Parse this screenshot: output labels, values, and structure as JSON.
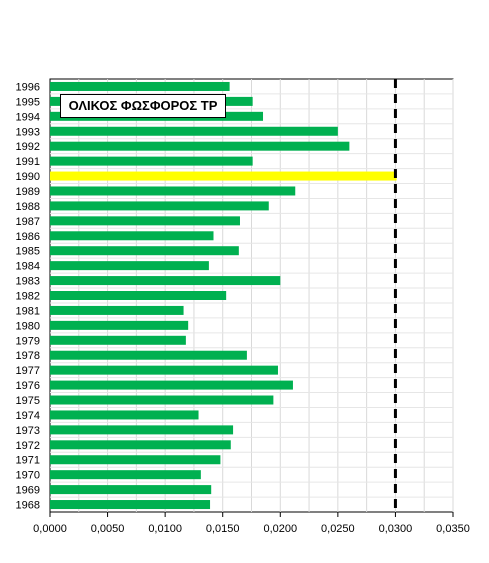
{
  "chart_data": {
    "type": "bar",
    "orientation": "horizontal",
    "title": "ΟΛΙΚΟΣ ΦΩΣΦΟΡΟΣ TP",
    "xlim": [
      0,
      0.035
    ],
    "x_ticks": [
      "0,0000",
      "0,0050",
      "0,0100",
      "0,0150",
      "0,0200",
      "0,0250",
      "0,0300",
      "0,0350"
    ],
    "x_tick_values": [
      0,
      0.005,
      0.01,
      0.015,
      0.02,
      0.025,
      0.03,
      0.035
    ],
    "grid": true,
    "categories": [
      "1968",
      "1969",
      "1970",
      "1971",
      "1972",
      "1973",
      "1974",
      "1975",
      "1976",
      "1977",
      "1978",
      "1979",
      "1980",
      "1981",
      "1982",
      "1983",
      "1984",
      "1985",
      "1986",
      "1987",
      "1988",
      "1989",
      "1990",
      "1991",
      "1992",
      "1993",
      "1994",
      "1995",
      "1996"
    ],
    "values": [
      0.0139,
      0.014,
      0.0131,
      0.0148,
      0.0157,
      0.0159,
      0.0129,
      0.0194,
      0.0211,
      0.0198,
      0.0171,
      0.0118,
      0.012,
      0.0116,
      0.0153,
      0.02,
      0.0138,
      0.0164,
      0.0142,
      0.0165,
      0.019,
      0.0213,
      0.0301,
      0.0176,
      0.026,
      0.025,
      0.0185,
      0.0176,
      0.0156
    ],
    "highlight_category": "1990",
    "bar_color": "#00b050",
    "highlight_color": "#ffff00",
    "reference_line": {
      "value": 0.03,
      "style": "dashed",
      "color": "#000000"
    }
  }
}
